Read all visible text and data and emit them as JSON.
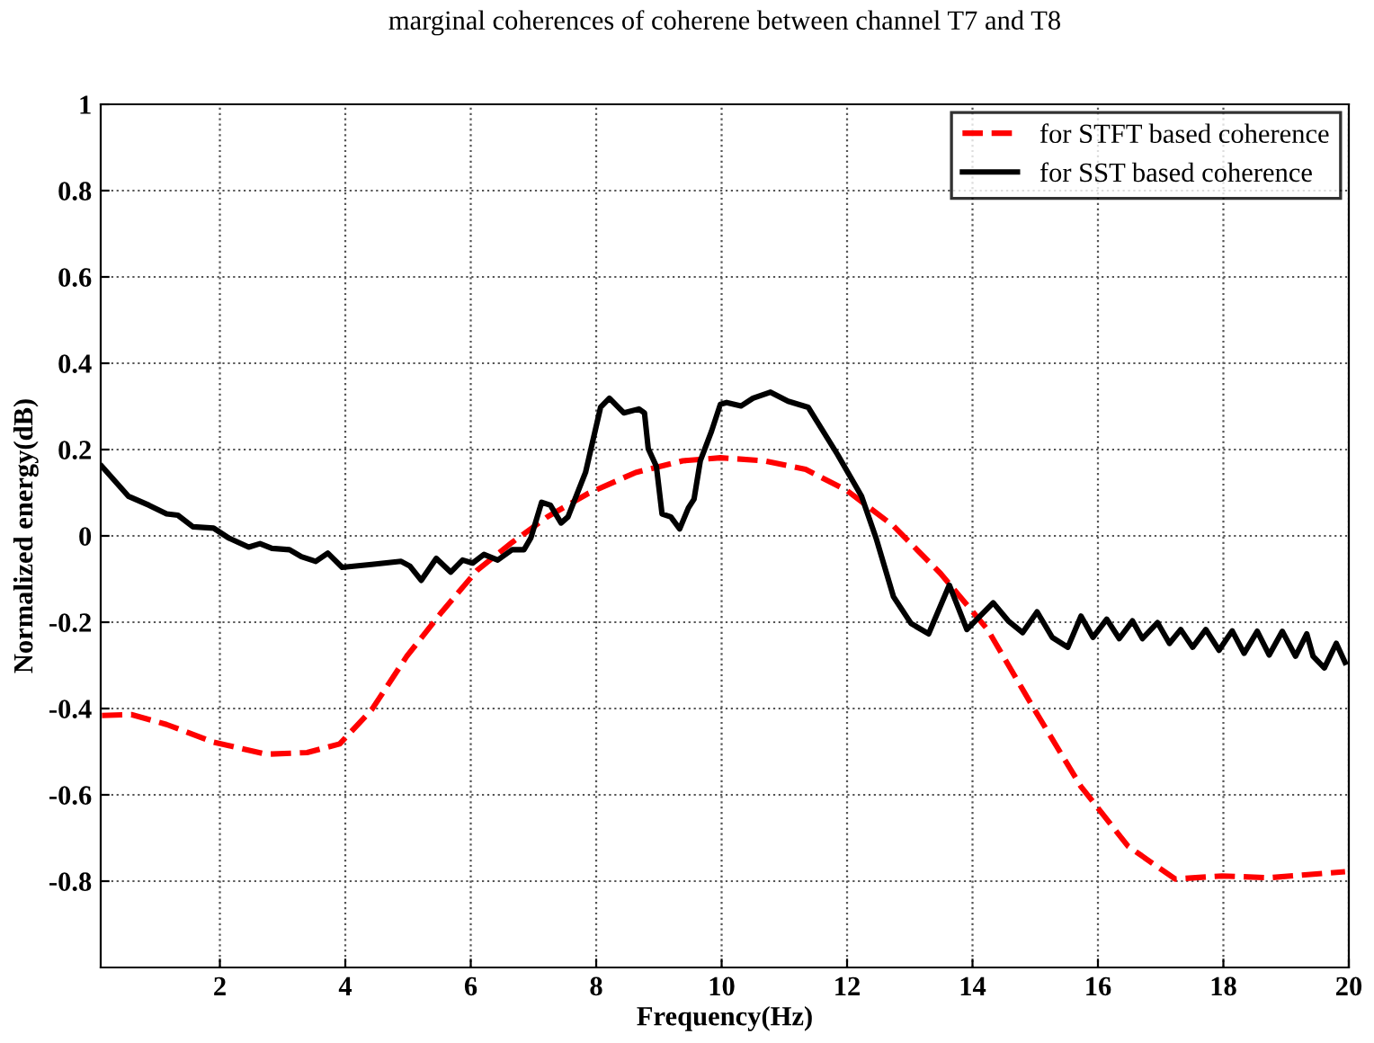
{
  "chart_data": {
    "type": "line",
    "title": "marginal coherences of coherene between channel T7 and T8",
    "xlabel": "Frequency(Hz)",
    "ylabel": "Normalized energy(dB)",
    "xlim": [
      0.1,
      20
    ],
    "ylim": [
      -1,
      1
    ],
    "xticks": [
      2,
      4,
      6,
      8,
      10,
      12,
      14,
      16,
      18,
      20
    ],
    "yticks": [
      -0.8,
      -0.6,
      -0.4,
      -0.2,
      0,
      0.2,
      0.4,
      0.6,
      0.8,
      1
    ],
    "grid": true,
    "legend": "top right",
    "series": [
      {
        "name": "for STFT based coherence",
        "color": "#ff0000",
        "line_style": "dashed",
        "x": [
          0.12,
          0.59,
          1.15,
          1.9,
          2.74,
          3.39,
          3.91,
          4.42,
          4.98,
          5.54,
          6.1,
          6.66,
          7.22,
          7.88,
          8.63,
          9.38,
          9.98,
          10.68,
          11.34,
          11.99,
          12.74,
          13.49,
          14.24,
          14.99,
          15.73,
          16.48,
          17.23,
          17.98,
          18.73,
          19.94
        ],
        "values": [
          -0.416,
          -0.414,
          -0.437,
          -0.478,
          -0.506,
          -0.502,
          -0.482,
          -0.403,
          -0.279,
          -0.176,
          -0.08,
          -0.015,
          0.044,
          0.099,
          0.147,
          0.174,
          0.181,
          0.174,
          0.154,
          0.106,
          0.023,
          -0.087,
          -0.217,
          -0.403,
          -0.581,
          -0.719,
          -0.795,
          -0.788,
          -0.792,
          -0.778
        ]
      },
      {
        "name": "for SST based coherence",
        "color": "#000000",
        "line_style": "solid",
        "x": [
          0.12,
          0.54,
          0.87,
          1.15,
          1.33,
          1.57,
          1.9,
          2.13,
          2.46,
          2.64,
          2.83,
          3.11,
          3.3,
          3.53,
          3.72,
          3.95,
          4.42,
          4.89,
          5.03,
          5.21,
          5.45,
          5.68,
          5.87,
          6.03,
          6.21,
          6.43,
          6.66,
          6.85,
          6.96,
          7.13,
          7.27,
          7.44,
          7.55,
          7.83,
          8.07,
          8.21,
          8.44,
          8.68,
          8.77,
          8.83,
          8.96,
          9.05,
          9.19,
          9.33,
          9.47,
          9.56,
          9.66,
          9.84,
          9.98,
          10.08,
          10.31,
          10.5,
          10.78,
          11.06,
          11.38,
          11.85,
          12.23,
          12.46,
          12.74,
          13.02,
          13.3,
          13.63,
          13.91,
          14.33,
          14.57,
          14.8,
          15.03,
          15.27,
          15.52,
          15.73,
          15.92,
          16.14,
          16.34,
          16.55,
          16.71,
          16.95,
          17.14,
          17.32,
          17.51,
          17.72,
          17.93,
          18.14,
          18.33,
          18.54,
          18.73,
          18.94,
          19.15,
          19.33,
          19.43,
          19.61,
          19.8,
          19.94
        ],
        "values": [
          0.161,
          0.092,
          0.071,
          0.051,
          0.048,
          0.021,
          0.018,
          -0.004,
          -0.026,
          -0.018,
          -0.029,
          -0.032,
          -0.048,
          -0.059,
          -0.04,
          -0.073,
          -0.066,
          -0.059,
          -0.07,
          -0.103,
          -0.052,
          -0.084,
          -0.056,
          -0.063,
          -0.043,
          -0.056,
          -0.032,
          -0.032,
          -0.004,
          0.078,
          0.071,
          0.03,
          0.044,
          0.147,
          0.298,
          0.319,
          0.285,
          0.294,
          0.285,
          0.202,
          0.161,
          0.051,
          0.044,
          0.016,
          0.065,
          0.085,
          0.174,
          0.243,
          0.305,
          0.309,
          0.301,
          0.319,
          0.333,
          0.312,
          0.298,
          0.188,
          0.092,
          -0.004,
          -0.141,
          -0.203,
          -0.227,
          -0.114,
          -0.217,
          -0.155,
          -0.197,
          -0.224,
          -0.176,
          -0.235,
          -0.258,
          -0.186,
          -0.235,
          -0.193,
          -0.238,
          -0.197,
          -0.238,
          -0.201,
          -0.249,
          -0.217,
          -0.258,
          -0.217,
          -0.265,
          -0.22,
          -0.272,
          -0.221,
          -0.276,
          -0.221,
          -0.279,
          -0.227,
          -0.279,
          -0.306,
          -0.249,
          -0.293
        ]
      }
    ]
  }
}
